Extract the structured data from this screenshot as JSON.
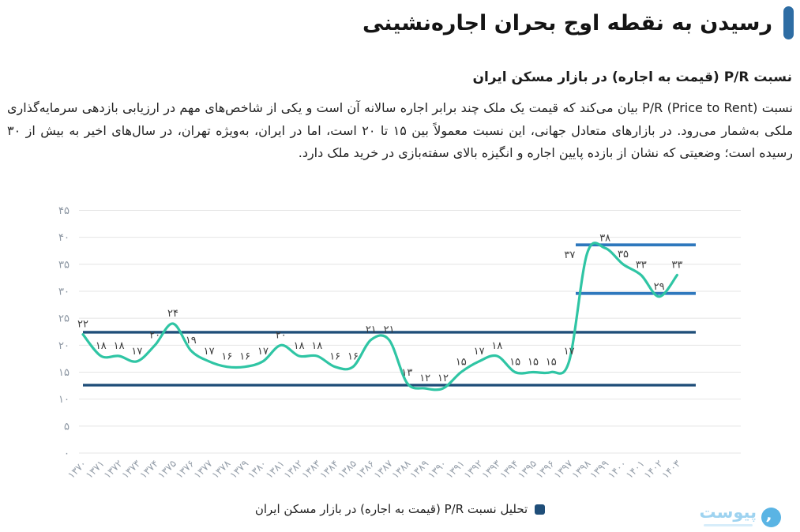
{
  "header": {
    "title": "رسیدن به نقطه اوج بحران اجاره‌نشینی",
    "accent_color": "#2e6da4"
  },
  "article": {
    "subtitle": "نسبت P/R (قیمت به اجاره) در بازار مسکن ایران",
    "body": "نسبت P/R (Price to Rent) بیان می‌کند که قیمت یک ملک چند برابر اجاره سالانه آن است و یکی از شاخص‌های مهم در ارزیابی بازدهی سرمایه‌گذاری ملکی به‌شمار می‌رود. در بازارهای متعادل جهانی، این نسبت معمولاً بین ۱۵ تا ۲۰ است، اما در ایران، به‌ویژه تهران، در سال‌های اخیر به بیش از ۳۰ رسیده است؛ وضعیتی که نشان از بازده پایین اجاره و انگیزه بالای سفته‌بازی در خرید ملک دارد."
  },
  "chart_data": {
    "type": "line",
    "title": "نسبت P/R (قیمت به اجاره) در بازار مسکن ایران",
    "categories": [
      "۱۳۷۰",
      "۱۳۷۱",
      "۱۳۷۲",
      "۱۳۷۳",
      "۱۳۷۴",
      "۱۳۷۵",
      "۱۳۷۶",
      "۱۳۷۷",
      "۱۳۷۸",
      "۱۳۷۹",
      "۱۳۸۰",
      "۱۳۸۱",
      "۱۳۸۲",
      "۱۳۸۳",
      "۱۳۸۴",
      "۱۳۸۵",
      "۱۳۸۶",
      "۱۳۸۷",
      "۱۳۸۸",
      "۱۳۸۹",
      "۱۳۹۰",
      "۱۳۹۱",
      "۱۳۹۲",
      "۱۳۹۳",
      "۱۳۹۴",
      "۱۳۹۵",
      "۱۳۹۶",
      "۱۳۹۷",
      "۱۳۹۸",
      "۱۳۹۹",
      "۱۴۰۰",
      "۱۴۰۱",
      "۱۴۰۲",
      "۱۴۰۳"
    ],
    "values": [
      22,
      18,
      18,
      17,
      20,
      24,
      19,
      17,
      16,
      16,
      17,
      20,
      18,
      18,
      16,
      16,
      21,
      21,
      13,
      12,
      12,
      15,
      17,
      18,
      15,
      15,
      15,
      17,
      37,
      38,
      35,
      33,
      29,
      33
    ],
    "value_labels": [
      "۲۲",
      "۱۸",
      "۱۸",
      "۱۷",
      "۲۰",
      "۲۴",
      "۱۹",
      "۱۷",
      "۱۶",
      "۱۶",
      "۱۷",
      "۲۰",
      "۱۸",
      "۱۸",
      "۱۶",
      "۱۶",
      "۲۱",
      "۲۱",
      "۱۳",
      "۱۲",
      "۱۲",
      "۱۵",
      "۱۷",
      "۱۸",
      "۱۵",
      "۱۵",
      "۱۵",
      "۱۷",
      "۳۷",
      "۳۸",
      "۳۵",
      "۳۳",
      "۲۹",
      "۳۳"
    ],
    "ylim": [
      0,
      45
    ],
    "ytick_step": 5,
    "ytick_labels": [
      "۰",
      "۵",
      "۱۰",
      "۱۵",
      "۲۰",
      "۲۵",
      "۳۰",
      "۳۵",
      "۴۰",
      "۴۵"
    ],
    "grid": true,
    "line_color": "#2fc5a4",
    "reference_lines": [
      {
        "value": 22.4,
        "color": "#1f4e79",
        "span": "full"
      },
      {
        "value": 12.6,
        "color": "#1f4e79",
        "span": "full"
      },
      {
        "value": 38.6,
        "color": "#2e78bd",
        "span": "right"
      },
      {
        "value": 29.6,
        "color": "#2e78bd",
        "span": "right"
      }
    ],
    "legend": {
      "label": "تحلیل نسبت P/R (قیمت به اجاره) در بازار مسکن ایران",
      "marker_color": "#1f4e79",
      "position": "bottom"
    }
  },
  "footer_logo": {
    "wordmark": "پیوست",
    "color": "#9ed3f0"
  }
}
